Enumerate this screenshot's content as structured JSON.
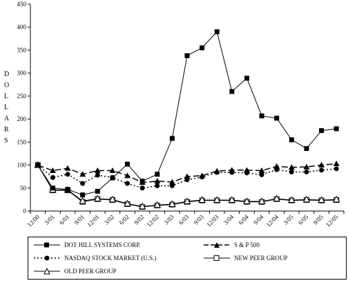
{
  "chart_data": {
    "type": "line",
    "title": "",
    "xlabel": "",
    "ylabel": "D O L L A R S",
    "ylim": [
      0,
      450
    ],
    "yticks": [
      0,
      50,
      100,
      150,
      200,
      250,
      300,
      350,
      400,
      450
    ],
    "grid": false,
    "legend_position": "bottom",
    "categories": [
      "12/00",
      "3/01",
      "6/01",
      "9/01",
      "12/01",
      "3/02",
      "6/02",
      "9/02",
      "12/02",
      "3/03",
      "6/03",
      "9/03",
      "12/03",
      "3/04",
      "6/04",
      "9/04",
      "12/04",
      "3/05",
      "6/05",
      "9/05",
      "12/05"
    ],
    "series": [
      {
        "name": "DOT HILL SYSTEMS CORP.",
        "marker": "square-filled",
        "dash": "solid",
        "values": [
          100,
          50,
          47,
          35,
          43,
          72,
          102,
          65,
          80,
          158,
          338,
          355,
          390,
          260,
          289,
          207,
          202,
          155,
          136,
          175,
          179
        ]
      },
      {
        "name": "S & P 500",
        "marker": "triangle-filled",
        "dash": "longdash",
        "values": [
          100,
          88,
          93,
          80,
          88,
          88,
          77,
          62,
          65,
          63,
          75,
          77,
          87,
          89,
          89,
          88,
          97,
          95,
          96,
          100,
          103
        ]
      },
      {
        "name": "NASDAQ STOCK MARKET (U.S.)",
        "marker": "circle-filled",
        "dash": "dot",
        "values": [
          100,
          73,
          80,
          60,
          78,
          73,
          60,
          50,
          55,
          55,
          68,
          74,
          84,
          84,
          83,
          79,
          90,
          85,
          85,
          89,
          92
        ]
      },
      {
        "name": "NEW PEER GROUP",
        "marker": "square-open",
        "dash": "solid",
        "values": [
          100,
          45,
          45,
          20,
          26,
          24,
          15,
          9,
          12,
          14,
          20,
          23,
          23,
          23,
          20,
          20,
          26,
          23,
          24,
          23,
          24
        ]
      },
      {
        "name": "OLD PEER GROUP",
        "marker": "triangle-open",
        "dash": "solid",
        "values": [
          100,
          46,
          46,
          22,
          27,
          25,
          16,
          10,
          13,
          15,
          21,
          24,
          24,
          24,
          21,
          21,
          27,
          24,
          25,
          24,
          25
        ]
      }
    ]
  }
}
